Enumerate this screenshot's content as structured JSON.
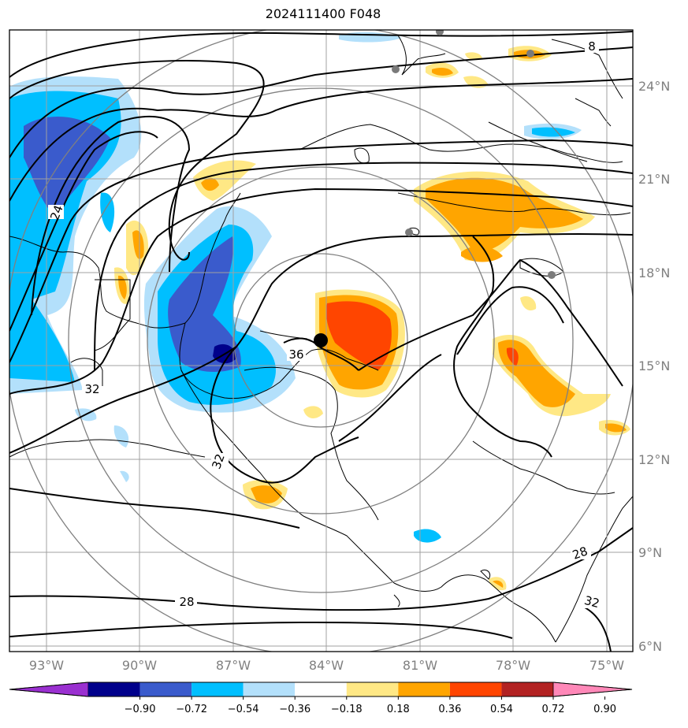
{
  "title": "2024111400 F048",
  "lat_labels": [
    "24°N",
    "21°N",
    "18°N",
    "15°N",
    "12°N",
    "9°N",
    "6°N"
  ],
  "lon_labels": [
    "93°W",
    "90°W",
    "87°W",
    "84°W",
    "81°W",
    "78°W",
    "75°W"
  ],
  "contour_labels": [
    "8",
    "24",
    "32",
    "36",
    "32",
    "28",
    "28",
    "32"
  ],
  "colorbar": {
    "ticks": [
      "−0.90",
      "−0.72",
      "−0.54",
      "−0.36",
      "−0.18",
      "0.18",
      "0.36",
      "0.54",
      "0.72",
      "0.90"
    ],
    "colors": [
      "#9a30d0",
      "#00008b",
      "#3a5bcc",
      "#00bfff",
      "#b3e0fb",
      "#ffffff",
      "#ffe885",
      "#ffa500",
      "#ff4500",
      "#b22222",
      "#ff88b8"
    ]
  }
}
